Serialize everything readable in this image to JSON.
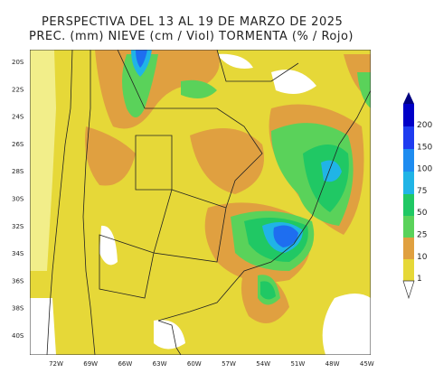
{
  "header": {
    "title": "PERSPECTIVA DEL 13 AL 19 DE MARZO DE 2025",
    "subtitle": "PREC. (mm) NIEVE (cm / Viol) TORMENTA (% / Rojo)"
  },
  "latitude_labels": [
    "20S",
    "22S",
    "24S",
    "26S",
    "28S",
    "30S",
    "32S",
    "34S",
    "36S",
    "38S",
    "40S"
  ],
  "longitude_labels": [
    "72W",
    "69W",
    "66W",
    "63W",
    "60W",
    "57W",
    "54W",
    "51W",
    "48W",
    "45W"
  ],
  "colorbar": {
    "labels": [
      200,
      150,
      100,
      75,
      50,
      25,
      10,
      1
    ]
  }
}
